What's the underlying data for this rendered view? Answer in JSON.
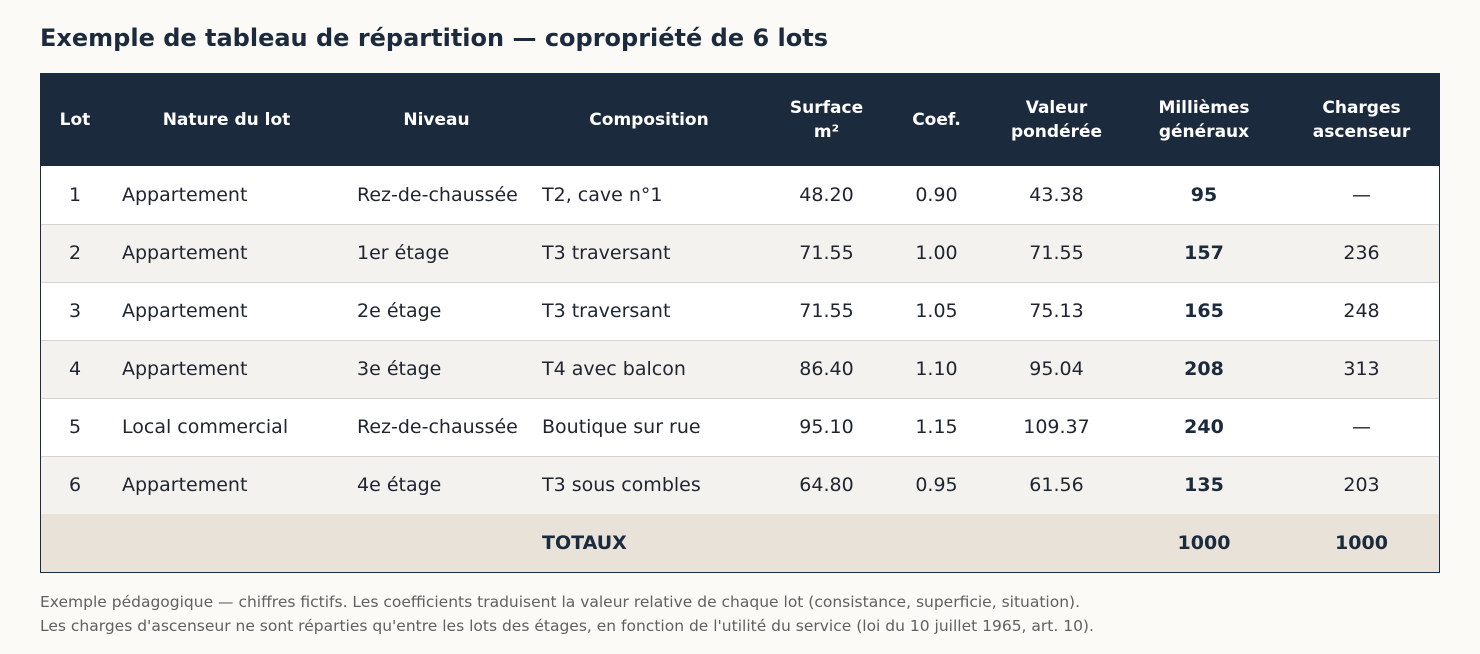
{
  "title": "Exemple de tableau de répartition — copropriété de 6 lots",
  "table": {
    "headers": [
      {
        "l1": "Lot",
        "l2": ""
      },
      {
        "l1": "Nature du lot",
        "l2": ""
      },
      {
        "l1": "Niveau",
        "l2": ""
      },
      {
        "l1": "Composition",
        "l2": ""
      },
      {
        "l1": "Surface",
        "l2": "m²"
      },
      {
        "l1": "Coef.",
        "l2": ""
      },
      {
        "l1": "Valeur",
        "l2": "pondérée"
      },
      {
        "l1": "Millièmes",
        "l2": "généraux"
      },
      {
        "l1": "Charges",
        "l2": "ascenseur"
      }
    ],
    "rows": [
      {
        "lot": "1",
        "nature": "Appartement",
        "niveau": "Rez-de-chaussée",
        "composition": "T2, cave n°1",
        "surface": "48.20",
        "coef": "0.90",
        "valeur": "43.38",
        "milliemes": "95",
        "ascenseur": "—"
      },
      {
        "lot": "2",
        "nature": "Appartement",
        "niveau": "1er étage",
        "composition": "T3 traversant",
        "surface": "71.55",
        "coef": "1.00",
        "valeur": "71.55",
        "milliemes": "157",
        "ascenseur": "236"
      },
      {
        "lot": "3",
        "nature": "Appartement",
        "niveau": "2e étage",
        "composition": "T3 traversant",
        "surface": "71.55",
        "coef": "1.05",
        "valeur": "75.13",
        "milliemes": "165",
        "ascenseur": "248"
      },
      {
        "lot": "4",
        "nature": "Appartement",
        "niveau": "3e étage",
        "composition": "T4 avec balcon",
        "surface": "86.40",
        "coef": "1.10",
        "valeur": "95.04",
        "milliemes": "208",
        "ascenseur": "313"
      },
      {
        "lot": "5",
        "nature": "Local commercial",
        "niveau": "Rez-de-chaussée",
        "composition": "Boutique sur rue",
        "surface": "95.10",
        "coef": "1.15",
        "valeur": "109.37",
        "milliemes": "240",
        "ascenseur": "—"
      },
      {
        "lot": "6",
        "nature": "Appartement",
        "niveau": "4e étage",
        "composition": "T3 sous combles",
        "surface": "64.80",
        "coef": "0.95",
        "valeur": "61.56",
        "milliemes": "135",
        "ascenseur": "203"
      }
    ],
    "totals": {
      "label": "TOTAUX",
      "milliemes": "1000",
      "ascenseur": "1000"
    }
  },
  "notes": [
    "Exemple pédagogique — chiffres fictifs. Les coefficients traduisent la valeur relative de chaque lot (consistance, superficie, situation).",
    "Les charges d'ascenseur ne sont réparties qu'entre les lots des étages, en fonction de l'utilité du service (loi du 10 juillet 1965, art. 10)."
  ],
  "colors": {
    "header_bg": "#1b2a3c",
    "row_alt": "#f3f2ee",
    "total_bg": "#e8e2d8",
    "page_bg": "#fbfaf6"
  }
}
